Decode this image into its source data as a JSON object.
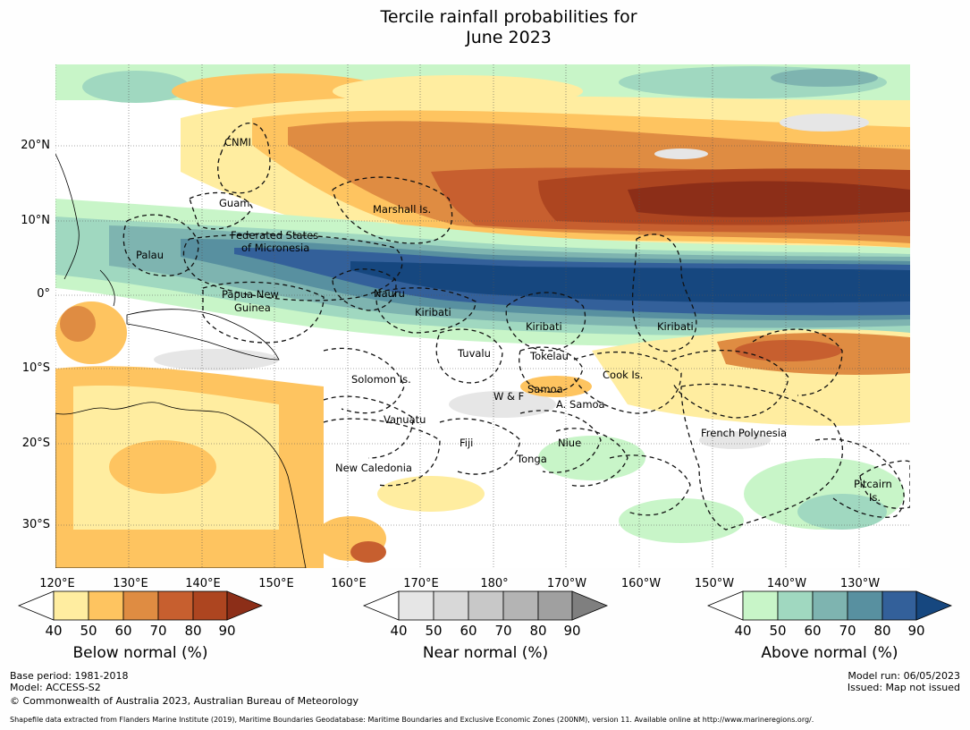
{
  "title": {
    "line1": "Tercile rainfall probabilities for",
    "line2": "June 2023"
  },
  "map": {
    "lat_labels": [
      "20°N",
      "10°N",
      "0°",
      "10°S",
      "20°S",
      "30°S"
    ],
    "lon_labels": [
      "120°E",
      "130°E",
      "140°E",
      "150°E",
      "160°E",
      "170°E",
      "180°",
      "170°W",
      "160°W",
      "150°W",
      "140°W",
      "130°W"
    ],
    "regions": [
      "CNMI",
      "Guam",
      "Marshall Is.",
      "Federated States",
      "of Micronesia",
      "Palau",
      "Papua New",
      "Guinea",
      "Nauru",
      "Kiribati",
      "Kiribati",
      "Kiribati",
      "Tuvalu",
      "Tokelau",
      "Solomon Is.",
      "Cook Is.",
      "W & F",
      "Samoa",
      "A. Samoa",
      "Vanuatu",
      "Fiji",
      "Niue",
      "French Polynesia",
      "Tonga",
      "New Caledonia",
      "Pitcairn",
      "Is."
    ]
  },
  "legends": [
    {
      "title": "Below normal (%)",
      "ticks": [
        "40",
        "50",
        "60",
        "70",
        "80",
        "90"
      ],
      "colors": [
        "#ffffff",
        "#ffeda0",
        "#fec460",
        "#df8c42",
        "#c75f2f",
        "#ad4520",
        "#8c2e18"
      ]
    },
    {
      "title": "Near normal (%)",
      "ticks": [
        "40",
        "50",
        "60",
        "70",
        "80",
        "90"
      ],
      "colors": [
        "#ffffff",
        "#e6e6e6",
        "#d8d8d8",
        "#c8c8c8",
        "#b4b4b4",
        "#a0a0a0",
        "#7f7f7f"
      ]
    },
    {
      "title": "Above normal (%)",
      "ticks": [
        "40",
        "50",
        "60",
        "70",
        "80",
        "90"
      ],
      "colors": [
        "#ffffff",
        "#c8f5c8",
        "#a0d8c0",
        "#7eb4b0",
        "#5890a0",
        "#33609a",
        "#16477f"
      ]
    }
  ],
  "footer": {
    "base_period": "Base period: 1981-2018",
    "model": "Model: ACCESS-S2",
    "copyright": "© Commonwealth of Australia 2023, Australian Bureau of Meteorology",
    "model_run": "Model run: 06/05/2023",
    "issued": "Issued: Map not issued",
    "shapefile": "Shapefile data extracted from Flanders Marine Institute (2019), Maritime Boundaries Geodatabase: Maritime Boundaries and Exclusive Economic Zones (200NM), version 11. Available online at http://www.marineregions.org/."
  }
}
